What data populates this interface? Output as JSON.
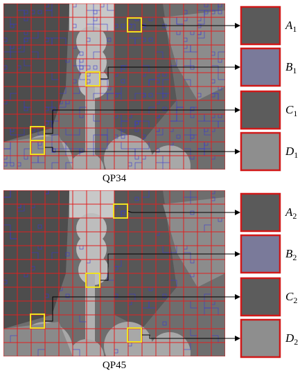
{
  "figures": [
    {
      "caption": "QP34",
      "insets": [
        {
          "letter": "A",
          "sub": "1"
        },
        {
          "letter": "B",
          "sub": "1"
        },
        {
          "letter": "C",
          "sub": "1"
        },
        {
          "letter": "D",
          "sub": "1"
        }
      ]
    },
    {
      "caption": "QP45",
      "insets": [
        {
          "letter": "A",
          "sub": "2"
        },
        {
          "letter": "B",
          "sub": "2"
        },
        {
          "letter": "C",
          "sub": "2"
        },
        {
          "letter": "D",
          "sub": "2"
        }
      ]
    }
  ]
}
